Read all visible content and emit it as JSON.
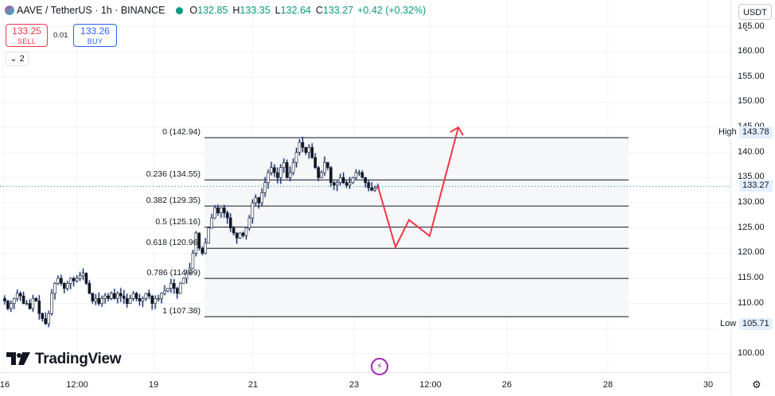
{
  "header": {
    "symbol": "AAVE / TetherUS · 1h · BINANCE",
    "o_label": "O",
    "o": "132.85",
    "h_label": "H",
    "h": "133.35",
    "l_label": "L",
    "l": "132.64",
    "c_label": "C",
    "c": "133.27",
    "change": "+0.42 (+0.32%)",
    "coin_icon": "aave-coin-icon",
    "status_icon": "market-open-dot-icon"
  },
  "trade": {
    "sell_price": "133.25",
    "sell_label": "SELL",
    "spread": "0.01",
    "buy_price": "133.26",
    "buy_label": "BUY"
  },
  "collapse": {
    "label": "2",
    "icon": "chevron-down-icon"
  },
  "currency": {
    "label": "USDT",
    "icon": "chevron-down-icon"
  },
  "logo": {
    "text": "TradingView",
    "icon": "tradingview-logo-icon"
  },
  "colors": {
    "up": "#089981",
    "down": "#f23645",
    "buy": "#2962ff",
    "projection": "#f23645",
    "fib_line": "#131722",
    "price_tag_bg": "#e3effd"
  },
  "chart_data": {
    "type": "candlestick",
    "symbol": "AAVE / TetherUS",
    "interval": "1h",
    "ylim": [
      97.5,
      167.5
    ],
    "y_ticks": [
      "165.00",
      "160.00",
      "155.00",
      "150.00",
      "145.00",
      "140.00",
      "135.00",
      "130.00",
      "125.00",
      "120.00",
      "115.00",
      "110.00",
      "105.00",
      "100.00"
    ],
    "y_tick_values": [
      165,
      160,
      155,
      150,
      145,
      140,
      135,
      130,
      125,
      120,
      115,
      110,
      105,
      100
    ],
    "x_ticks": [
      "16",
      "12:00",
      "19",
      "21",
      "23",
      "12:00",
      "26",
      "28",
      "30"
    ],
    "last_price": "133.27",
    "high_label": "High",
    "high": "143.78",
    "low_label": "Low",
    "low": "105.71",
    "fibonacci": [
      {
        "label": "0 (142.94)",
        "level": 142.94
      },
      {
        "label": "0.236 (134.55)",
        "level": 134.55
      },
      {
        "label": "0.382 (129.35)",
        "level": 129.35
      },
      {
        "label": "0.5 (125.16)",
        "level": 125.16
      },
      {
        "label": "0.618 (120.96)",
        "level": 120.96
      },
      {
        "label": "0.786 (114.99)",
        "level": 114.99
      },
      {
        "label": "1 (107.38)",
        "level": 107.38
      }
    ],
    "price_path": [
      111,
      110.5,
      109,
      110,
      111,
      112,
      111.5,
      110,
      110,
      109,
      111,
      110.5,
      108,
      107,
      106,
      108,
      112,
      114,
      115,
      114,
      113,
      114,
      115,
      114.5,
      115,
      115.5,
      116,
      114,
      112,
      110.5,
      111,
      110,
      111,
      111.5,
      111,
      112,
      111,
      112,
      111.5,
      111,
      110,
      111,
      112,
      111,
      110.5,
      111,
      112,
      111.5,
      110,
      111,
      111,
      112,
      112.5,
      113,
      114,
      113,
      112,
      114,
      115,
      116,
      117,
      120,
      124,
      121,
      120,
      122,
      125,
      127,
      129,
      128,
      129,
      128,
      127,
      125,
      124,
      123,
      124,
      123.5,
      125,
      127,
      130,
      131,
      130,
      132,
      134,
      136,
      137,
      136,
      135,
      137,
      138,
      135,
      136,
      138,
      140,
      142,
      141,
      140,
      141,
      139,
      137,
      135,
      136,
      138,
      137,
      134,
      133.5,
      134,
      135,
      134,
      133.5,
      134,
      135,
      136,
      136,
      135,
      134,
      133,
      132.5,
      132.85,
      133.27
    ],
    "projection": [
      {
        "date": "23 ~03:00",
        "y": 133.27
      },
      {
        "date": "23 ~08:00",
        "y": 121.2
      },
      {
        "date": "23 ~11:00",
        "y": 126.6
      },
      {
        "date": "24 ~00:00",
        "y": 123.4
      },
      {
        "date": "24 ~04:00",
        "y": 145.0
      }
    ]
  }
}
